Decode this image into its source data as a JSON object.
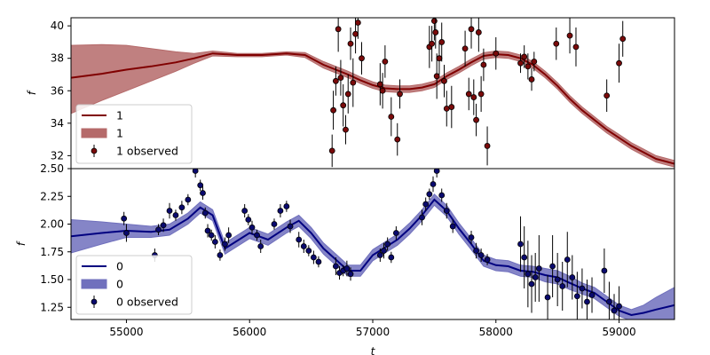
{
  "chart_data": [
    {
      "type": "line",
      "panel": "top",
      "xlabel": "",
      "ylabel": "f",
      "xlim": [
        54550,
        59450
      ],
      "ylim": [
        31.2,
        40.5
      ],
      "yticks": [
        32,
        34,
        36,
        38,
        40
      ],
      "yticklabels": [
        "32",
        "34",
        "36",
        "38",
        "40"
      ],
      "legend_position": "lower-left",
      "colors": {
        "line": "#800000",
        "band": "#b56a6a",
        "points": "#7a0a0a"
      },
      "series": [
        {
          "name": "1",
          "kind": "mean",
          "x": [
            54550,
            54800,
            55000,
            55200,
            55400,
            55550,
            55700,
            55900,
            56100,
            56300,
            56450,
            56600,
            56700,
            56800,
            56900,
            57000,
            57100,
            57200,
            57300,
            57400,
            57500,
            57600,
            57700,
            57800,
            57900,
            58000,
            58100,
            58200,
            58300,
            58400,
            58500,
            58600,
            58700,
            58800,
            58900,
            59000,
            59100,
            59200,
            59300,
            59450
          ],
          "y": [
            36.8,
            37.05,
            37.3,
            37.5,
            37.75,
            38.0,
            38.3,
            38.2,
            38.2,
            38.3,
            38.2,
            37.6,
            37.3,
            37.0,
            36.65,
            36.35,
            36.15,
            36.1,
            36.1,
            36.2,
            36.4,
            36.9,
            37.3,
            37.75,
            38.15,
            38.25,
            38.2,
            38.0,
            37.6,
            37.0,
            36.3,
            35.5,
            34.8,
            34.2,
            33.6,
            33.1,
            32.6,
            32.2,
            31.8,
            31.5
          ]
        },
        {
          "name": "1",
          "kind": "band",
          "lower": [
            34.6,
            35.4,
            36.0,
            36.6,
            37.2,
            37.7,
            38.15,
            38.1,
            38.1,
            38.2,
            38.05,
            37.4,
            37.1,
            36.8,
            36.45,
            36.15,
            35.95,
            35.9,
            35.9,
            36.0,
            36.2,
            36.7,
            37.1,
            37.55,
            37.95,
            38.05,
            38.0,
            37.8,
            37.4,
            36.8,
            36.1,
            35.3,
            34.6,
            34.0,
            33.4,
            32.9,
            32.4,
            32.0,
            31.6,
            31.3
          ],
          "upper": [
            38.8,
            38.85,
            38.8,
            38.6,
            38.4,
            38.3,
            38.45,
            38.3,
            38.3,
            38.4,
            38.35,
            37.8,
            37.5,
            37.2,
            36.85,
            36.55,
            36.35,
            36.3,
            36.3,
            36.4,
            36.6,
            37.1,
            37.5,
            37.95,
            38.35,
            38.45,
            38.4,
            38.2,
            37.8,
            37.2,
            36.5,
            35.7,
            35.0,
            34.4,
            33.8,
            33.3,
            32.8,
            32.4,
            32.0,
            31.7
          ]
        },
        {
          "name": "1 observed",
          "kind": "points",
          "x": [
            56670,
            56680,
            56700,
            56720,
            56740,
            56760,
            56780,
            56800,
            56820,
            56840,
            56860,
            56880,
            56910,
            57060,
            57080,
            57100,
            57150,
            57200,
            57220,
            57460,
            57480,
            57500,
            57510,
            57520,
            57540,
            57560,
            57580,
            57600,
            57640,
            57750,
            57780,
            57800,
            57820,
            57840,
            57860,
            57880,
            57900,
            57930,
            58000,
            58200,
            58230,
            58260,
            58290,
            58310,
            58490,
            58600,
            58650,
            58900,
            59000,
            59030
          ],
          "y": [
            32.3,
            34.8,
            36.6,
            39.8,
            36.8,
            35.1,
            33.6,
            35.8,
            38.9,
            36.5,
            39.5,
            40.2,
            38.0,
            36.4,
            36.0,
            37.8,
            34.4,
            33.0,
            35.8,
            38.7,
            38.9,
            40.3,
            39.6,
            36.9,
            38.0,
            39.0,
            36.6,
            34.9,
            35.0,
            38.6,
            35.8,
            39.8,
            35.6,
            34.2,
            39.6,
            35.8,
            37.6,
            32.6,
            38.3,
            37.7,
            38.1,
            37.5,
            36.7,
            37.8,
            38.9,
            39.4,
            38.7,
            35.7,
            37.7,
            39.2
          ],
          "err": [
            1.0,
            1.2,
            0.9,
            1.4,
            1.1,
            1.3,
            0.9,
            1.2,
            1.0,
            1.5,
            1.2,
            1.0,
            1.0,
            1.3,
            1.1,
            1.0,
            1.2,
            1.0,
            0.9,
            1.3,
            1.1,
            1.2,
            1.0,
            1.4,
            1.0,
            1.2,
            1.0,
            1.1,
            1.3,
            1.1,
            1.0,
            1.2,
            1.1,
            1.0,
            1.2,
            1.1,
            1.0,
            1.2,
            1.0,
            0.6,
            0.7,
            0.8,
            0.7,
            0.6,
            1.0,
            1.1,
            1.2,
            1.0,
            1.2,
            1.1
          ]
        }
      ]
    },
    {
      "type": "line",
      "panel": "bottom",
      "xlabel": "t",
      "ylabel": "f",
      "xlim": [
        54550,
        59450
      ],
      "ylim": [
        1.14,
        2.5
      ],
      "xticks": [
        55000,
        56000,
        57000,
        58000,
        59000
      ],
      "xticklabels": [
        "55000",
        "56000",
        "57000",
        "58000",
        "59000"
      ],
      "yticks": [
        1.25,
        1.5,
        1.75,
        2.0,
        2.25,
        2.5
      ],
      "yticklabels": [
        "1.25",
        "1.50",
        "1.75",
        "2.00",
        "2.25",
        "2.50"
      ],
      "legend_position": "lower-left",
      "colors": {
        "line": "#000080",
        "band": "#7070bd",
        "points": "#0a0a6e"
      },
      "series": [
        {
          "name": "0",
          "kind": "mean",
          "x": [
            54550,
            54800,
            55000,
            55200,
            55350,
            55500,
            55600,
            55700,
            55800,
            56000,
            56150,
            56300,
            56400,
            56500,
            56600,
            56700,
            56800,
            56900,
            57000,
            57100,
            57200,
            57300,
            57400,
            57500,
            57600,
            57700,
            57800,
            57900,
            58000,
            58100,
            58200,
            58300,
            58400,
            58500,
            58600,
            58700,
            58800,
            58900,
            59000,
            59100,
            59200,
            59300,
            59450
          ],
          "y": [
            1.89,
            1.92,
            1.94,
            1.93,
            1.95,
            2.05,
            2.15,
            2.08,
            1.78,
            1.92,
            1.86,
            1.97,
            2.03,
            1.92,
            1.78,
            1.68,
            1.58,
            1.58,
            1.72,
            1.79,
            1.86,
            1.96,
            2.08,
            2.22,
            2.12,
            1.96,
            1.82,
            1.67,
            1.63,
            1.62,
            1.58,
            1.57,
            1.54,
            1.52,
            1.47,
            1.42,
            1.38,
            1.3,
            1.22,
            1.18,
            1.2,
            1.23,
            1.27
          ],
          "band_halfwidth": [
            0.15,
            0.1,
            0.06,
            0.05,
            0.05,
            0.05,
            0.05,
            0.05,
            0.05,
            0.05,
            0.05,
            0.05,
            0.05,
            0.05,
            0.05,
            0.05,
            0.05,
            0.05,
            0.05,
            0.05,
            0.05,
            0.05,
            0.05,
            0.05,
            0.05,
            0.05,
            0.05,
            0.05,
            0.05,
            0.05,
            0.05,
            0.05,
            0.06,
            0.06,
            0.06,
            0.05,
            0.05,
            0.05,
            0.05,
            0.05,
            0.07,
            0.11,
            0.16
          ]
        },
        {
          "name": "0",
          "kind": "band"
        },
        {
          "name": "0 observed",
          "kind": "points",
          "x": [
            54980,
            55000,
            55230,
            55260,
            55300,
            55350,
            55400,
            55450,
            55500,
            55560,
            55600,
            55620,
            55640,
            55660,
            55690,
            55720,
            55760,
            55800,
            55830,
            55960,
            55990,
            56020,
            56060,
            56090,
            56200,
            56250,
            56300,
            56330,
            56400,
            56440,
            56480,
            56520,
            56560,
            56700,
            56730,
            56760,
            56790,
            56820,
            57060,
            57090,
            57120,
            57150,
            57190,
            57400,
            57430,
            57460,
            57490,
            57520,
            57560,
            57600,
            57650,
            57800,
            57840,
            57880,
            57930,
            58200,
            58230,
            58260,
            58290,
            58320,
            58350,
            58420,
            58460,
            58500,
            58540,
            58580,
            58620,
            58660,
            58700,
            58740,
            58780,
            58880,
            58920,
            58960,
            59000
          ],
          "y": [
            2.05,
            1.92,
            1.72,
            1.95,
            1.99,
            2.12,
            2.08,
            2.15,
            2.22,
            2.48,
            2.35,
            2.28,
            2.1,
            1.94,
            1.9,
            1.84,
            1.72,
            1.82,
            1.9,
            2.12,
            2.04,
            1.97,
            1.9,
            1.8,
            2.0,
            2.12,
            2.16,
            1.98,
            1.86,
            1.8,
            1.76,
            1.7,
            1.66,
            1.62,
            1.56,
            1.58,
            1.6,
            1.55,
            1.72,
            1.76,
            1.82,
            1.7,
            1.92,
            2.06,
            2.18,
            2.27,
            2.36,
            2.48,
            2.26,
            2.12,
            1.98,
            1.88,
            1.76,
            1.72,
            1.68,
            1.82,
            1.7,
            1.55,
            1.46,
            1.52,
            1.6,
            1.34,
            1.62,
            1.5,
            1.44,
            1.68,
            1.52,
            1.35,
            1.42,
            1.3,
            1.36,
            1.58,
            1.3,
            1.22,
            1.26
          ],
          "err": [
            0.06,
            0.08,
            0.06,
            0.05,
            0.06,
            0.07,
            0.05,
            0.06,
            0.05,
            0.06,
            0.05,
            0.06,
            0.05,
            0.06,
            0.05,
            0.06,
            0.05,
            0.06,
            0.07,
            0.06,
            0.05,
            0.06,
            0.05,
            0.06,
            0.05,
            0.06,
            0.05,
            0.06,
            0.07,
            0.06,
            0.05,
            0.06,
            0.05,
            0.08,
            0.06,
            0.05,
            0.07,
            0.06,
            0.06,
            0.07,
            0.06,
            0.05,
            0.06,
            0.07,
            0.06,
            0.05,
            0.07,
            0.06,
            0.06,
            0.07,
            0.06,
            0.06,
            0.07,
            0.06,
            0.05,
            0.25,
            0.28,
            0.3,
            0.26,
            0.22,
            0.3,
            0.2,
            0.28,
            0.24,
            0.22,
            0.25,
            0.2,
            0.22,
            0.18,
            0.2,
            0.16,
            0.2,
            0.18,
            0.15,
            0.18
          ]
        }
      ]
    }
  ],
  "legends": {
    "top": [
      {
        "label": "1",
        "kind": "line"
      },
      {
        "label": "1",
        "kind": "patch"
      },
      {
        "label": "1 observed",
        "kind": "errorpoint"
      }
    ],
    "bottom": [
      {
        "label": "0",
        "kind": "line"
      },
      {
        "label": "0",
        "kind": "patch"
      },
      {
        "label": "0 observed",
        "kind": "errorpoint"
      }
    ]
  }
}
